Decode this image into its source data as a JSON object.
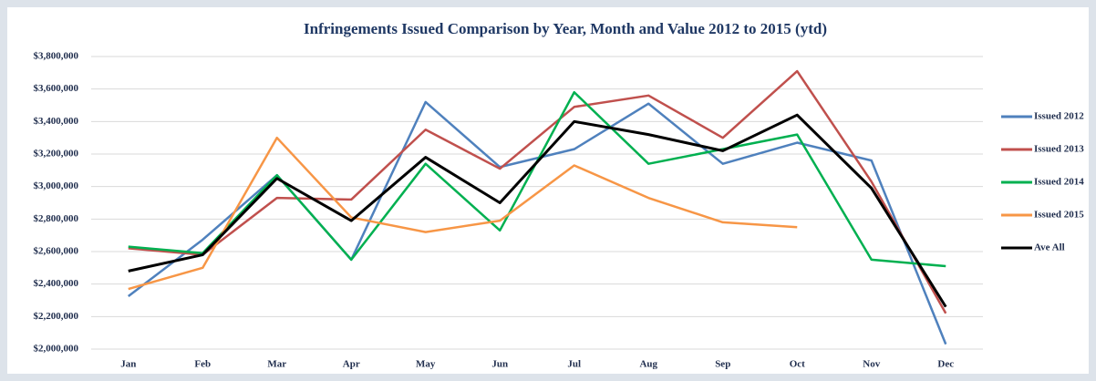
{
  "chart_data": {
    "type": "line",
    "title": "Infringements Issued Comparison by Year, Month and Value 2012 to 2015 (ytd)",
    "categories": [
      "Jan",
      "Feb",
      "Mar",
      "Apr",
      "May",
      "Jun",
      "Jul",
      "Aug",
      "Sep",
      "Oct",
      "Nov",
      "Dec"
    ],
    "series": [
      {
        "name": "Issued 2012",
        "color": "#4f81bd",
        "values": [
          2325000,
          2673000,
          3070000,
          2550000,
          3520000,
          3120000,
          3230000,
          3510000,
          3140000,
          3270000,
          3160000,
          2030000
        ]
      },
      {
        "name": "Issued 2013",
        "color": "#c0504d",
        "values": [
          2620000,
          2580000,
          2930000,
          2920000,
          3350000,
          3110000,
          3490000,
          3560000,
          3300000,
          3710000,
          3030000,
          2220000
        ]
      },
      {
        "name": "Issued 2014",
        "color": "#00b050",
        "values": [
          2630000,
          2590000,
          3070000,
          2550000,
          3140000,
          2730000,
          3580000,
          3140000,
          3230000,
          3320000,
          2550000,
          2510000
        ]
      },
      {
        "name": "Issued 2015",
        "color": "#f79646",
        "values": [
          2370000,
          2500000,
          3300000,
          2810000,
          2720000,
          2790000,
          3130000,
          2930000,
          2780000,
          2750000,
          null,
          null
        ]
      },
      {
        "name": "Ave All",
        "color": "#000000",
        "values": [
          2480000,
          2580000,
          3050000,
          2790000,
          3180000,
          2900000,
          3400000,
          3320000,
          3220000,
          3440000,
          2990000,
          2260000
        ]
      }
    ],
    "ylim": [
      2000000,
      3800000
    ],
    "yticks": [
      {
        "value": 2000000,
        "label": "$2,000,000"
      },
      {
        "value": 2200000,
        "label": "$2,200,000"
      },
      {
        "value": 2400000,
        "label": "$2,400,000"
      },
      {
        "value": 2600000,
        "label": "$2,600,000"
      },
      {
        "value": 2800000,
        "label": "$2,800,000"
      },
      {
        "value": 3000000,
        "label": "$3,000,000"
      },
      {
        "value": 3200000,
        "label": "$3,200,000"
      },
      {
        "value": 3400000,
        "label": "$3,400,000"
      },
      {
        "value": 3600000,
        "label": "$3,600,000"
      },
      {
        "value": 3800000,
        "label": "$3,800,000"
      }
    ],
    "grid": true,
    "legend": "right"
  }
}
